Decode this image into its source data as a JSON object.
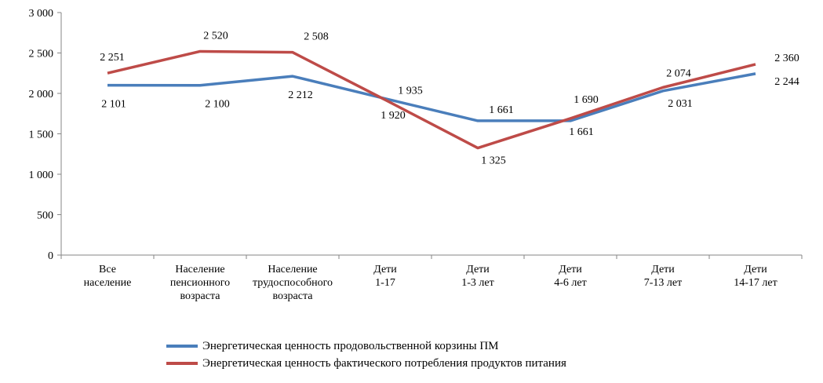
{
  "chart_data": {
    "type": "line",
    "categories": [
      [
        "Все",
        "население"
      ],
      [
        "Население",
        "пенсионного",
        "возраста"
      ],
      [
        "Население",
        "трудоспособного",
        "возраста"
      ],
      [
        "Дети",
        "1-17"
      ],
      [
        "Дети",
        "1-3 лет"
      ],
      [
        "Дети",
        "4-6 лет"
      ],
      [
        "Дети",
        "7-13 лет"
      ],
      [
        "Дети",
        "14-17 лет"
      ]
    ],
    "series": [
      {
        "name": "Энергетическая ценность продовольственной корзины ПМ",
        "color": "#4a7ebb",
        "values": [
          2101,
          2100,
          2212,
          1935,
          1661,
          1661,
          2031,
          2244
        ],
        "labels": [
          "2 101",
          "2 100",
          "2 212",
          "1 935",
          "1 661",
          "1 661",
          "2 031",
          "2 244"
        ]
      },
      {
        "name": "Энергетическая ценность фактического потребления продуктов питания",
        "color": "#be4b48",
        "values": [
          2251,
          2520,
          2508,
          1920,
          1325,
          1690,
          2074,
          2360
        ],
        "labels": [
          "2 251",
          "2 520",
          "2 508",
          "1 920",
          "1 325",
          "1 690",
          "2 074",
          "2 360"
        ]
      }
    ],
    "ylim": [
      0,
      3000
    ],
    "yticks": [
      0,
      500,
      1000,
      1500,
      2000,
      2500,
      3000
    ],
    "ytick_labels": [
      "0",
      "500",
      "1 000",
      "1 500",
      "2 000",
      "2 500",
      "3 000"
    ],
    "grid": false,
    "legend": "bottom"
  }
}
